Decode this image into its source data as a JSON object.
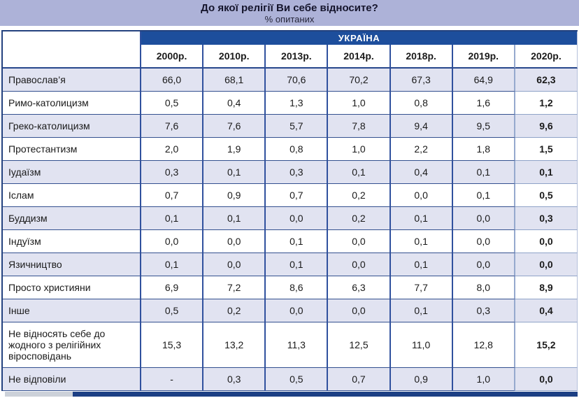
{
  "title": {
    "main": "До якої релігії Ви себе відносите?",
    "subtitle": "% опитаних"
  },
  "table": {
    "region_header": "УКРАЇНА",
    "years": [
      "2000р.",
      "2010р.",
      "2013р.",
      "2014р.",
      "2018р.",
      "2019р.",
      "2020р."
    ],
    "rows": [
      {
        "label": "Православ’я",
        "values": [
          "66,0",
          "68,1",
          "70,6",
          "70,2",
          "67,3",
          "64,9",
          "62,3"
        ]
      },
      {
        "label": "Римо-католицизм",
        "values": [
          "0,5",
          "0,4",
          "1,3",
          "1,0",
          "0,8",
          "1,6",
          "1,2"
        ]
      },
      {
        "label": "Греко-католицизм",
        "values": [
          "7,6",
          "7,6",
          "5,7",
          "7,8",
          "9,4",
          "9,5",
          "9,6"
        ]
      },
      {
        "label": "Протестантизм",
        "values": [
          "2,0",
          "1,9",
          "0,8",
          "1,0",
          "2,2",
          "1,8",
          "1,5"
        ]
      },
      {
        "label": "Іудаїзм",
        "values": [
          "0,3",
          "0,1",
          "0,3",
          "0,1",
          "0,4",
          "0,1",
          "0,1"
        ]
      },
      {
        "label": "Іслам",
        "values": [
          "0,7",
          "0,9",
          "0,7",
          "0,2",
          "0,0",
          "0,1",
          "0,5"
        ]
      },
      {
        "label": "Буддизм",
        "values": [
          "0,1",
          "0,1",
          "0,0",
          "0,2",
          "0,1",
          "0,0",
          "0,3"
        ]
      },
      {
        "label": "Індуїзм",
        "values": [
          "0,0",
          "0,0",
          "0,1",
          "0,0",
          "0,1",
          "0,0",
          "0,0"
        ]
      },
      {
        "label": "Язичництво",
        "values": [
          "0,1",
          "0,0",
          "0,1",
          "0,0",
          "0,1",
          "0,0",
          "0,0"
        ]
      },
      {
        "label": "Просто християни",
        "values": [
          "6,9",
          "7,2",
          "8,6",
          "6,3",
          "7,7",
          "8,0",
          "8,9"
        ]
      },
      {
        "label": "Інше",
        "values": [
          "0,5",
          "0,2",
          "0,0",
          "0,0",
          "0,1",
          "0,3",
          "0,4"
        ]
      },
      {
        "label": "Не відносять себе до жодного з релігійних віросповідань",
        "values": [
          "15,3",
          "13,2",
          "11,3",
          "12,5",
          "11,0",
          "12,8",
          "15,2"
        ]
      },
      {
        "label": "Не відповіли",
        "values": [
          "-",
          "0,3",
          "0,5",
          "0,7",
          "0,9",
          "1,0",
          "0,0"
        ]
      }
    ]
  },
  "colors": {
    "banner_background": "#adb2d8",
    "header_navy": "#1d4e9c",
    "row_stripe": "#e1e3f1",
    "grid_navy": "#30519e",
    "light_grid": "#96a9ce",
    "footer_navy": "#1c3f84",
    "footer_gray": "#ccd1d9"
  }
}
